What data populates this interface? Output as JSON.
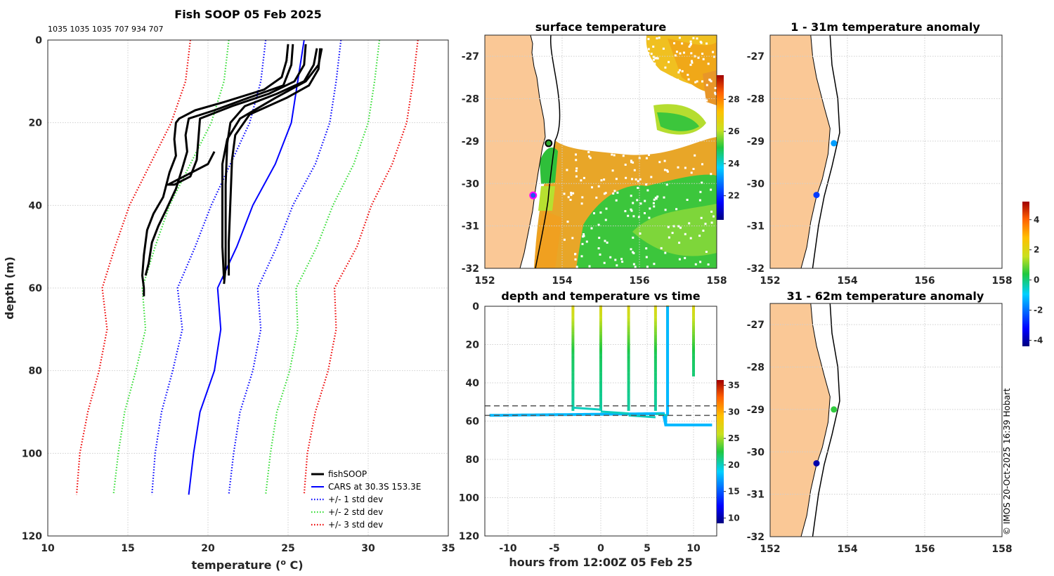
{
  "chart_data": [
    {
      "type": "line",
      "title": "Fish SOOP 05 Feb 2025",
      "subtitle": "1035 1035 1035 707 934 707",
      "xlabel": "temperature (o C)",
      "ylabel": "depth (m)",
      "xlim": [
        10,
        35
      ],
      "ylim": [
        0,
        120
      ],
      "xticks": [
        "10",
        "15",
        "20",
        "25",
        "30",
        "35"
      ],
      "yticks": [
        "0",
        "20",
        "40",
        "60",
        "80",
        "100",
        "120"
      ],
      "legend": [
        "fishSOOP",
        "CARS at 30.3S 153.3E",
        "+/- 1 std dev",
        "+/- 2 std dev",
        "+/- 3 std dev"
      ],
      "series": [
        {
          "name": "CARS at 30.3S 153.3E",
          "color": "#0000ff",
          "style": "solid",
          "points": [
            [
              26.0,
              0
            ],
            [
              25.6,
              10
            ],
            [
              25.2,
              20
            ],
            [
              24.2,
              30
            ],
            [
              22.8,
              40
            ],
            [
              21.8,
              50
            ],
            [
              20.6,
              60
            ],
            [
              20.8,
              70
            ],
            [
              20.4,
              80
            ],
            [
              19.5,
              90
            ],
            [
              19.1,
              100
            ],
            [
              18.8,
              110
            ]
          ]
        },
        {
          "name": "+/- 1 std dev (low)",
          "color": "#0000ff",
          "style": "dotted",
          "points": [
            [
              23.6,
              0
            ],
            [
              23.3,
              10
            ],
            [
              22.6,
              20
            ],
            [
              21.4,
              30
            ],
            [
              20.2,
              40
            ],
            [
              19.2,
              50
            ],
            [
              18.1,
              60
            ],
            [
              18.4,
              70
            ],
            [
              17.8,
              80
            ],
            [
              17.1,
              90
            ],
            [
              16.7,
              100
            ],
            [
              16.5,
              110
            ]
          ]
        },
        {
          "name": "+/- 1 std dev (high)",
          "color": "#0000ff",
          "style": "dotted",
          "points": [
            [
              28.3,
              0
            ],
            [
              28.0,
              10
            ],
            [
              27.6,
              20
            ],
            [
              26.7,
              30
            ],
            [
              25.3,
              40
            ],
            [
              24.3,
              50
            ],
            [
              23.1,
              60
            ],
            [
              23.3,
              70
            ],
            [
              22.8,
              80
            ],
            [
              22.0,
              90
            ],
            [
              21.6,
              100
            ],
            [
              21.3,
              110
            ]
          ]
        },
        {
          "name": "+/- 2 std dev (low)",
          "color": "#33dd33",
          "style": "dotted",
          "points": [
            [
              21.3,
              0
            ],
            [
              21.0,
              10
            ],
            [
              20.2,
              20
            ],
            [
              18.9,
              30
            ],
            [
              17.6,
              40
            ],
            [
              16.7,
              50
            ],
            [
              15.9,
              60
            ],
            [
              16.1,
              70
            ],
            [
              15.5,
              80
            ],
            [
              14.8,
              90
            ],
            [
              14.4,
              100
            ],
            [
              14.1,
              110
            ]
          ]
        },
        {
          "name": "+/- 2 std dev (high)",
          "color": "#33dd33",
          "style": "dotted",
          "points": [
            [
              30.7,
              0
            ],
            [
              30.4,
              10
            ],
            [
              30.0,
              20
            ],
            [
              29.1,
              30
            ],
            [
              27.8,
              40
            ],
            [
              26.8,
              50
            ],
            [
              25.5,
              60
            ],
            [
              25.6,
              70
            ],
            [
              25.1,
              80
            ],
            [
              24.3,
              90
            ],
            [
              23.9,
              100
            ],
            [
              23.6,
              110
            ]
          ]
        },
        {
          "name": "+/- 3 std dev (low)",
          "color": "#ee0000",
          "style": "dotted",
          "points": [
            [
              18.9,
              0
            ],
            [
              18.6,
              10
            ],
            [
              17.7,
              20
            ],
            [
              16.4,
              30
            ],
            [
              15.1,
              40
            ],
            [
              14.2,
              50
            ],
            [
              13.4,
              60
            ],
            [
              13.7,
              70
            ],
            [
              13.2,
              80
            ],
            [
              12.5,
              90
            ],
            [
              12.0,
              100
            ],
            [
              11.8,
              110
            ]
          ]
        },
        {
          "name": "+/- 3 std dev (high)",
          "color": "#ee0000",
          "style": "dotted",
          "points": [
            [
              33.1,
              0
            ],
            [
              32.8,
              10
            ],
            [
              32.4,
              20
            ],
            [
              31.5,
              30
            ],
            [
              30.2,
              40
            ],
            [
              29.3,
              50
            ],
            [
              27.9,
              60
            ],
            [
              28.0,
              70
            ],
            [
              27.5,
              80
            ],
            [
              26.7,
              90
            ],
            [
              26.2,
              100
            ],
            [
              26.0,
              110
            ]
          ]
        },
        {
          "name": "fishSOOP",
          "color": "#000000",
          "style": "solid",
          "width": 3,
          "profiles": [
            [
              [
                25.0,
                1
              ],
              [
                24.9,
                5
              ],
              [
                24.6,
                9
              ],
              [
                23.5,
                12
              ],
              [
                21.0,
                15
              ],
              [
                19.2,
                17
              ],
              [
                18.2,
                19
              ],
              [
                18.0,
                20
              ],
              [
                17.9,
                24
              ],
              [
                18.0,
                28
              ],
              [
                17.6,
                32
              ],
              [
                17.2,
                38
              ],
              [
                16.6,
                42
              ],
              [
                16.2,
                46
              ],
              [
                16.0,
                52
              ],
              [
                15.9,
                57
              ],
              [
                16.0,
                60
              ],
              [
                16.0,
                62
              ]
            ],
            [
              [
                25.3,
                1
              ],
              [
                25.2,
                6
              ],
              [
                24.7,
                11
              ],
              [
                22.5,
                14
              ],
              [
                20.4,
                17
              ],
              [
                18.8,
                19
              ],
              [
                18.6,
                23
              ],
              [
                18.7,
                27
              ],
              [
                18.4,
                31
              ],
              [
                18.0,
                36
              ],
              [
                17.4,
                41
              ],
              [
                16.9,
                45
              ],
              [
                16.5,
                49
              ],
              [
                16.3,
                54
              ],
              [
                16.1,
                57
              ]
            ],
            [
              [
                26.1,
                1
              ],
              [
                26.0,
                6
              ],
              [
                25.4,
                10
              ],
              [
                23.8,
                13
              ],
              [
                21.5,
                16
              ],
              [
                19.5,
                19
              ],
              [
                19.4,
                24
              ],
              [
                19.3,
                29
              ],
              [
                18.9,
                33
              ],
              [
                17.9,
                35
              ],
              [
                17.5,
                35
              ],
              [
                19.0,
                32
              ],
              [
                20.0,
                30
              ],
              [
                20.4,
                27
              ]
            ],
            [
              [
                26.8,
                2
              ],
              [
                26.6,
                6
              ],
              [
                26.0,
                10
              ],
              [
                24.3,
                13
              ],
              [
                22.3,
                16
              ],
              [
                21.4,
                20
              ],
              [
                21.2,
                25
              ],
              [
                21.1,
                35
              ],
              [
                21.1,
                45
              ],
              [
                21.1,
                55
              ],
              [
                21.0,
                59
              ]
            ],
            [
              [
                27.0,
                2
              ],
              [
                26.9,
                7
              ],
              [
                26.3,
                11
              ],
              [
                24.9,
                14
              ],
              [
                22.6,
                18
              ],
              [
                21.7,
                23
              ],
              [
                21.5,
                29
              ],
              [
                21.4,
                39
              ],
              [
                21.3,
                49
              ],
              [
                21.3,
                57
              ]
            ],
            [
              [
                27.1,
                2
              ],
              [
                26.9,
                6
              ],
              [
                26.1,
                10
              ],
              [
                24.2,
                14
              ],
              [
                22.0,
                19
              ],
              [
                21.2,
                24
              ],
              [
                20.9,
                30
              ],
              [
                20.9,
                40
              ],
              [
                20.9,
                50
              ],
              [
                21.0,
                58
              ]
            ]
          ]
        }
      ]
    },
    {
      "type": "heatmap",
      "title": "surface temperature",
      "xlim": [
        152,
        158
      ],
      "ylim": [
        -32,
        -26.5
      ],
      "xticks": [
        "152",
        "154",
        "156",
        "158"
      ],
      "yticks": [
        "-27",
        "-28",
        "-29",
        "-30",
        "-31",
        "-32"
      ],
      "colorbar": {
        "ticks": [
          "22",
          "24",
          "26",
          "28"
        ],
        "range": [
          20.5,
          29.5
        ]
      },
      "markers": [
        {
          "lon": 153.65,
          "lat": -29.05,
          "fill": "#33aa33",
          "edge": "#000000"
        },
        {
          "lon": 153.25,
          "lat": -30.28,
          "fill": "#2255ee",
          "edge": "#ff00ff"
        }
      ]
    },
    {
      "type": "scatter",
      "title": "depth and temperature vs time",
      "xlabel": "hours from 12:00Z 05 Feb 25",
      "xlim": [
        -12.5,
        12.5
      ],
      "ylim": [
        0,
        120
      ],
      "xticks": [
        "-10",
        "-5",
        "0",
        "5",
        "10"
      ],
      "yticks": [
        "0",
        "20",
        "40",
        "60",
        "80",
        "100",
        "120"
      ],
      "colorbar": {
        "ticks": [
          "10",
          "15",
          "20",
          "25",
          "30",
          "35"
        ],
        "range": [
          9,
          36
        ]
      },
      "bottom_depth_lines": [
        52,
        57
      ],
      "casts_hours": [
        -3,
        0,
        3,
        5.9,
        7.2,
        10
      ]
    },
    {
      "type": "scatter",
      "title": "1 - 31m temperature anomaly",
      "xlim": [
        152,
        158
      ],
      "ylim": [
        -32,
        -26.5
      ],
      "xticks": [
        "152",
        "154",
        "156",
        "158"
      ],
      "yticks": [
        "-27",
        "-28",
        "-29",
        "-30",
        "-31",
        "-32"
      ],
      "points": [
        {
          "lon": 153.65,
          "lat": -29.05,
          "anomaly": -1.5
        },
        {
          "lon": 153.2,
          "lat": -30.27,
          "anomaly": -2.6
        }
      ]
    },
    {
      "type": "scatter",
      "title": "31 - 62m temperature anomaly",
      "xlim": [
        152,
        158
      ],
      "ylim": [
        -32,
        -26.5
      ],
      "xticks": [
        "152",
        "154",
        "156",
        "158"
      ],
      "yticks": [
        "-27",
        "-28",
        "-29",
        "-30",
        "-31",
        "-32"
      ],
      "points": [
        {
          "lon": 153.65,
          "lat": -29.0,
          "anomaly": 0.5
        },
        {
          "lon": 153.2,
          "lat": -30.27,
          "anomaly": -4.0
        }
      ]
    }
  ],
  "anomaly_colorbar": {
    "ticks": [
      "-4",
      "-2",
      "0",
      "2",
      "4"
    ],
    "range": [
      -4.4,
      5.2
    ]
  },
  "credit": "© IMOS 20-Oct-2025 16:39 Hobart",
  "colors": {
    "land": "#fac896",
    "coast": "#000000"
  }
}
